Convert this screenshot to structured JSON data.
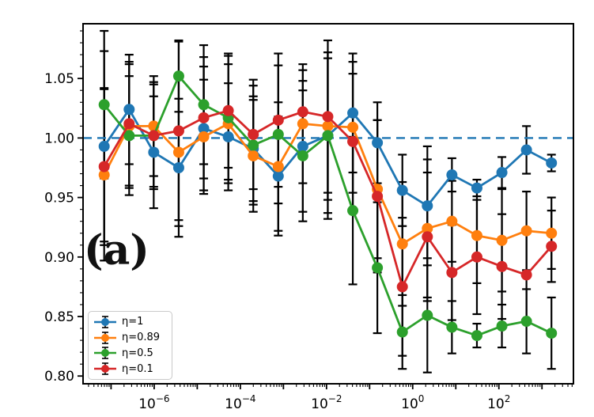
{
  "figure": {
    "background": "#ffffff",
    "annotation": "(a)"
  },
  "chart_data": {
    "type": "line",
    "subtype": "errorbar",
    "title": "",
    "xlabel": "",
    "ylabel": "",
    "xscale": "log",
    "xlim_log10": [
      -7.65,
      3.73
    ],
    "ylim": [
      0.7935,
      1.096
    ],
    "grid": false,
    "legend_position": "lower-left",
    "annotation": "(a)",
    "reference_line": {
      "y": 1.0,
      "style": "dashed",
      "color": "#1f77b4"
    },
    "x_ticks": [
      {
        "exp": -6,
        "label": "10^-6"
      },
      {
        "exp": -4,
        "label": "10^-4"
      },
      {
        "exp": -2,
        "label": "10^-2"
      },
      {
        "exp": 0,
        "label": "10^0"
      },
      {
        "exp": 2,
        "label": "10^2"
      }
    ],
    "y_tick_values": [
      1.05,
      1.0,
      0.95,
      0.9,
      0.85,
      0.8
    ],
    "y_tick_labels": [
      "1.05",
      "1.00",
      "0.95",
      "0.90",
      "0.85",
      "0.80"
    ],
    "y_minor_step": 0.01,
    "x_log10": [
      -7.16,
      -6.58,
      -6.01,
      -5.43,
      -4.85,
      -4.28,
      -3.7,
      -3.12,
      -2.55,
      -1.97,
      -1.39,
      -0.82,
      -0.24,
      0.34,
      0.91,
      1.49,
      2.07,
      2.64,
      3.22
    ],
    "series": [
      {
        "id": "eta-1",
        "name": "η=1",
        "color": "#1f77b4",
        "values": [
          0.993,
          1.024,
          0.988,
          0.975,
          1.008,
          1.001,
          0.991,
          0.968,
          0.993,
          1.002,
          1.021,
          0.996,
          0.956,
          0.943,
          0.969,
          0.958,
          0.971,
          0.99,
          0.979
        ],
        "errors": [
          0.08,
          0.046,
          0.047,
          0.058,
          0.052,
          0.045,
          0.044,
          0.05,
          0.055,
          0.065,
          0.05,
          0.034,
          0.03,
          0.05,
          0.014,
          0.007,
          0.013,
          0.02,
          0.007
        ]
      },
      {
        "id": "eta-0.89",
        "name": "η=0.89",
        "color": "#ff7f0e",
        "values": [
          0.969,
          1.01,
          1.01,
          0.988,
          1.001,
          1.012,
          0.985,
          0.976,
          1.012,
          1.01,
          1.009,
          0.957,
          0.911,
          0.924,
          0.93,
          0.918,
          0.914,
          0.922,
          0.92
        ],
        "errors": [
          0.072,
          0.052,
          0.042,
          0.062,
          0.048,
          0.05,
          0.047,
          0.054,
          0.05,
          0.062,
          0.055,
          0.058,
          0.052,
          0.058,
          0.034,
          0.04,
          0.043,
          0.033,
          0.03
        ]
      },
      {
        "id": "eta-0.5",
        "name": "η=0.5",
        "color": "#2ca02c",
        "values": [
          1.028,
          1.002,
          1.002,
          1.052,
          1.028,
          1.017,
          0.994,
          1.003,
          0.985,
          1.002,
          0.939,
          0.891,
          0.837,
          0.851,
          0.841,
          0.834,
          0.842,
          0.846,
          0.836
        ],
        "errors": [
          0.062,
          0.05,
          0.045,
          0.03,
          0.05,
          0.052,
          0.05,
          0.058,
          0.055,
          0.07,
          0.062,
          0.055,
          0.031,
          0.048,
          0.022,
          0.01,
          0.018,
          0.027,
          0.03
        ]
      },
      {
        "id": "eta-0.1",
        "name": "η=0.1",
        "color": "#d62728",
        "values": [
          0.976,
          1.012,
          1.002,
          1.006,
          1.017,
          1.023,
          1.003,
          1.015,
          1.022,
          1.018,
          0.997,
          0.951,
          0.875,
          0.917,
          0.887,
          0.9,
          0.892,
          0.885,
          0.909
        ],
        "errors": [
          0.066,
          0.052,
          0.043,
          0.075,
          0.051,
          0.048,
          0.046,
          0.056,
          0.035,
          0.064,
          0.057,
          0.064,
          0.058,
          0.054,
          0.04,
          0.048,
          0.044,
          0.038,
          0.03
        ]
      }
    ]
  }
}
